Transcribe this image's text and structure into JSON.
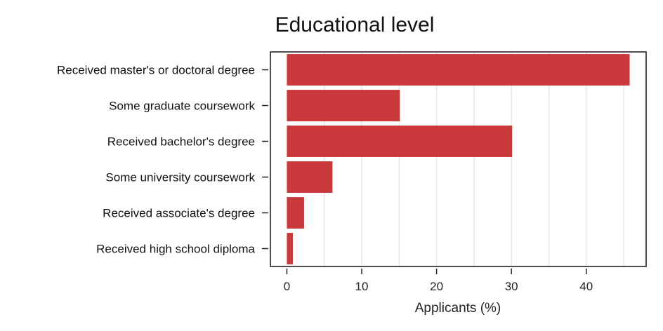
{
  "chart_data": {
    "type": "bar",
    "orientation": "horizontal",
    "title": "Educational level",
    "xlabel": "Applicants (%)",
    "ylabel": "",
    "categories": [
      "Received master's or doctoral degree",
      "Some graduate coursework",
      "Received bachelor's degree",
      "Some university coursework",
      "Received associate's degree",
      "Received high school diploma"
    ],
    "values": [
      45.8,
      15.1,
      30.1,
      6.1,
      2.3,
      0.8
    ],
    "xlim": [
      -2.2,
      48
    ],
    "xticks": [
      0,
      10,
      20,
      30,
      40
    ],
    "xtick_labels": [
      "0",
      "10",
      "20",
      "30",
      "40"
    ],
    "grid": "vertical",
    "bar_color": "#c9383a",
    "grid_color": "#e6e6e6",
    "axis_color": "#222222"
  }
}
